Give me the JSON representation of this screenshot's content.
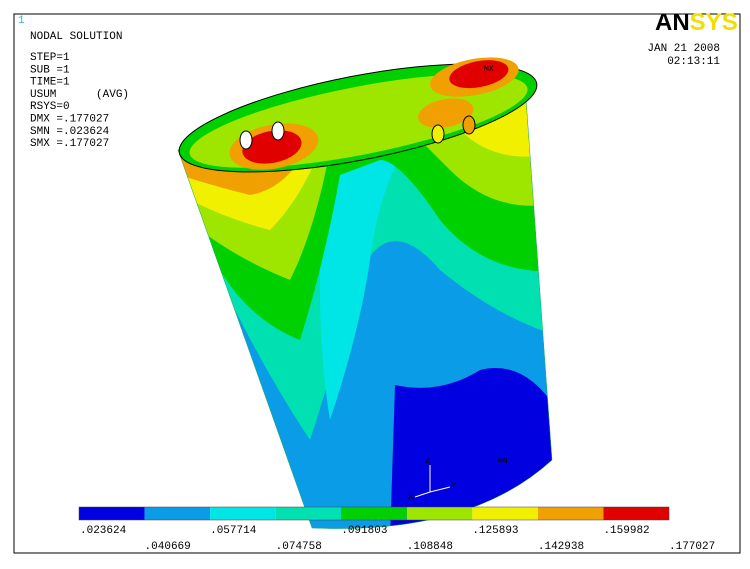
{
  "window_number": "1",
  "info": {
    "title": "NODAL SOLUTION",
    "lines": [
      "STEP=1",
      "SUB =1",
      "TIME=1",
      "USUM      (AVG)",
      "RSYS=0",
      "DMX =.177027",
      "SMN =.023624",
      "SMX =.177027"
    ]
  },
  "logo": {
    "dark": "AN",
    "light": "SYS"
  },
  "date": "JAN 21 2008",
  "time": "02:13:11",
  "labels": {
    "max": "MX",
    "min": "MN"
  },
  "triad": {
    "z": "Z",
    "y": "Y",
    "x": "X"
  },
  "legend": {
    "colors": [
      "#0000e0",
      "#0a9ce6",
      "#00e6e6",
      "#00e0b0",
      "#00d000",
      "#9ee600",
      "#f0f000",
      "#f0a000",
      "#e00000"
    ],
    "values": [
      ".023624",
      ".040669",
      ".057714",
      ".074758",
      ".091803",
      ".108848",
      ".125893",
      ".142938",
      ".159982",
      ".177027"
    ]
  }
}
